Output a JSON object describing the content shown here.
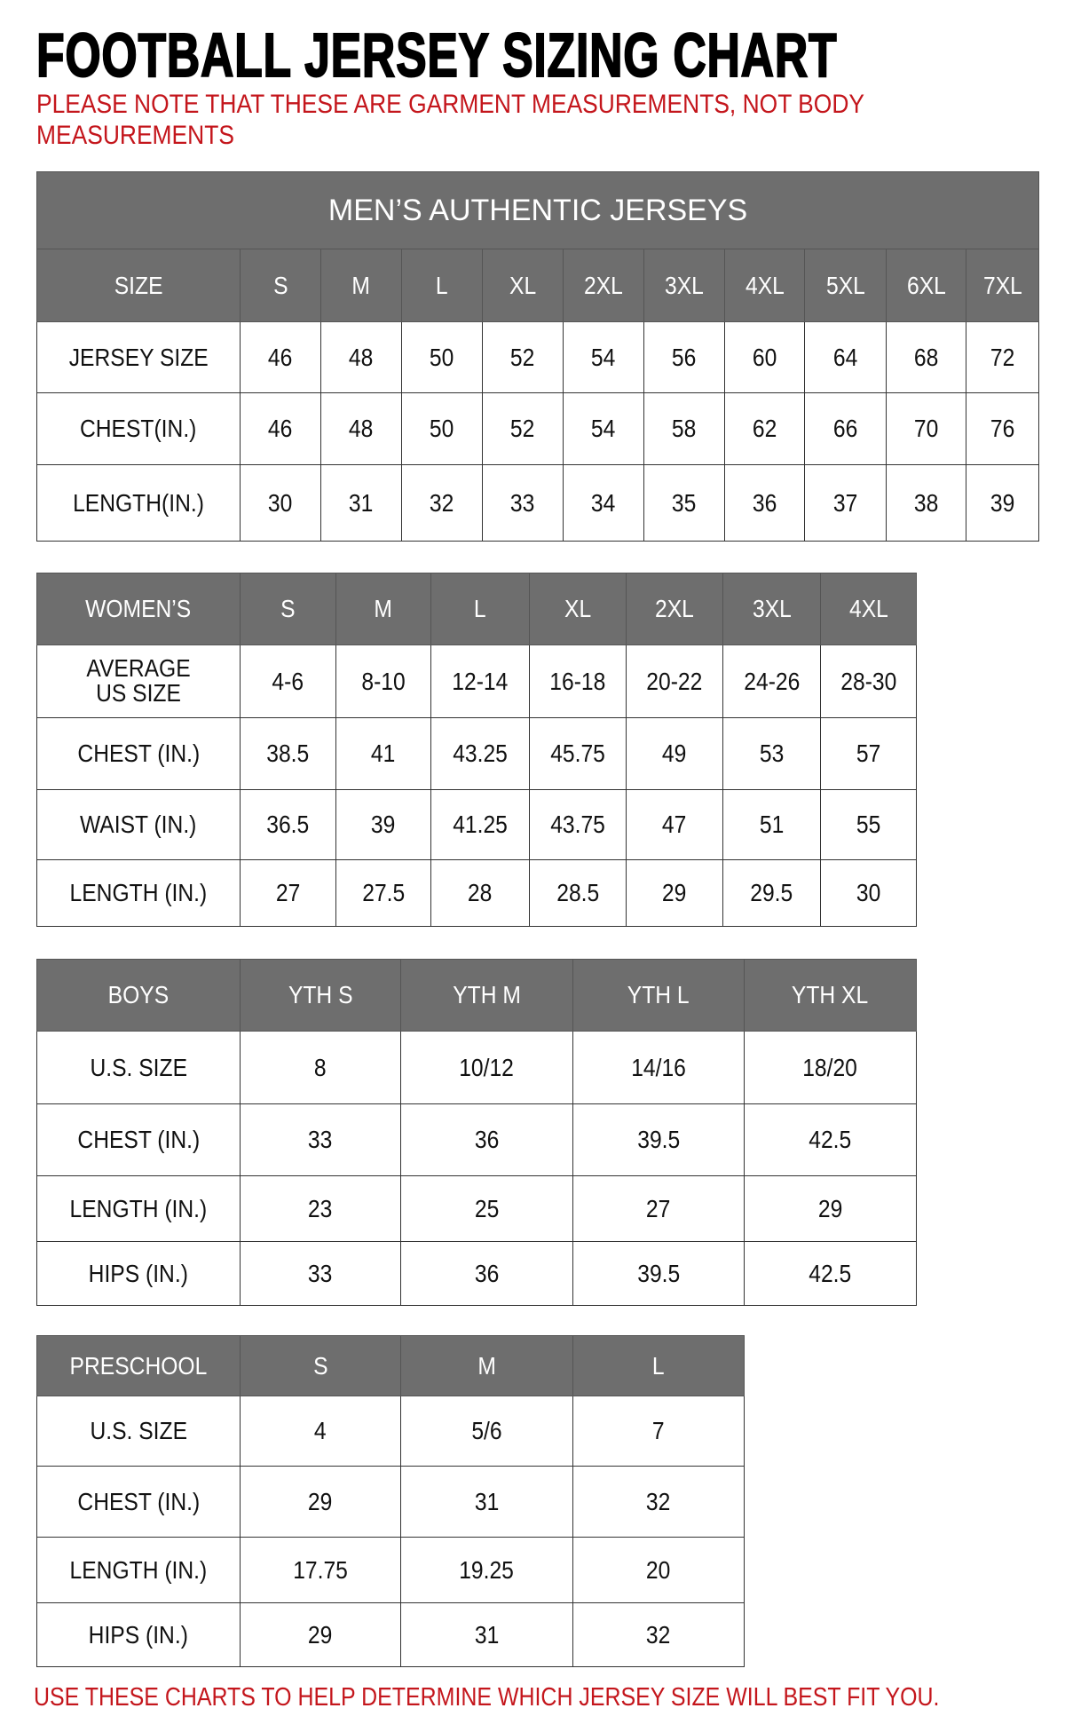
{
  "title": "FOOTBALL JERSEY SIZING CHART",
  "note": "PLEASE NOTE THAT THESE ARE GARMENT MEASUREMENTS, NOT BODY MEASUREMENTS",
  "footer": "USE THESE CHARTS TO HELP DETERMINE WHICH JERSEY SIZE WILL BEST FIT YOU.",
  "colors": {
    "header_bg": "#6e6e6e",
    "note_red": "#c4161c"
  },
  "tables": [
    {
      "id": "mens",
      "caption": "MEN’S AUTHENTIC JERSEYS",
      "header": [
        "SIZE",
        "S",
        "M",
        "L",
        "XL",
        "2XL",
        "3XL",
        "4XL",
        "5XL",
        "6XL",
        "7XL"
      ],
      "rows": [
        [
          "JERSEY SIZE",
          "46",
          "48",
          "50",
          "52",
          "54",
          "56",
          "60",
          "64",
          "68",
          "72"
        ],
        [
          "CHEST(IN.)",
          "46",
          "48",
          "50",
          "52",
          "54",
          "58",
          "62",
          "66",
          "70",
          "76"
        ],
        [
          "LENGTH(IN.)",
          "30",
          "31",
          "32",
          "33",
          "34",
          "35",
          "36",
          "37",
          "38",
          "39"
        ]
      ]
    },
    {
      "id": "womens",
      "header": [
        "WOMEN’S",
        "S",
        "M",
        "L",
        "XL",
        "2XL",
        "3XL",
        "4XL"
      ],
      "rows": [
        [
          "AVERAGE US SIZE",
          "4-6",
          "8-10",
          "12-14",
          "16-18",
          "20-22",
          "24-26",
          "28-30"
        ],
        [
          "CHEST (IN.)",
          "38.5",
          "41",
          "43.25",
          "45.75",
          "49",
          "53",
          "57"
        ],
        [
          "WAIST (IN.)",
          "36.5",
          "39",
          "41.25",
          "43.75",
          "47",
          "51",
          "55"
        ],
        [
          "LENGTH (IN.)",
          "27",
          "27.5",
          "28",
          "28.5",
          "29",
          "29.5",
          "30"
        ]
      ]
    },
    {
      "id": "boys",
      "header": [
        "BOYS",
        "YTH S",
        "YTH M",
        "YTH L",
        "YTH XL"
      ],
      "rows": [
        [
          "U.S. SIZE",
          "8",
          "10/12",
          "14/16",
          "18/20"
        ],
        [
          "CHEST (IN.)",
          "33",
          "36",
          "39.5",
          "42.5"
        ],
        [
          "LENGTH (IN.)",
          "23",
          "25",
          "27",
          "29"
        ],
        [
          "HIPS (IN.)",
          "33",
          "36",
          "39.5",
          "42.5"
        ]
      ]
    },
    {
      "id": "preschool",
      "header": [
        "PRESCHOOL",
        "S",
        "M",
        "L"
      ],
      "rows": [
        [
          "U.S. SIZE",
          "4",
          "5/6",
          "7"
        ],
        [
          "CHEST (IN.)",
          "29",
          "31",
          "32"
        ],
        [
          "LENGTH (IN.)",
          "17.75",
          "19.25",
          "20"
        ],
        [
          "HIPS (IN.)",
          "29",
          "31",
          "32"
        ]
      ]
    }
  ]
}
